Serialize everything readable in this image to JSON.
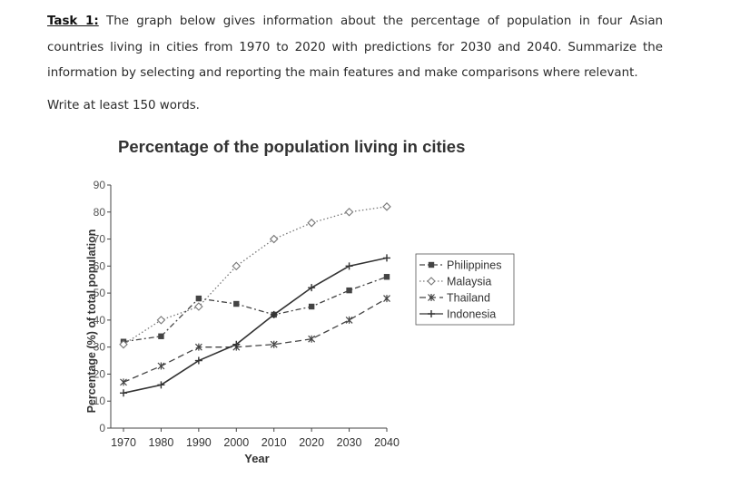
{
  "task": {
    "label": "Task 1:",
    "text": " The graph below gives information about the percentage of population in four Asian countries living in cities from 1970 to 2020 with predictions for 2030 and 2040. Summarize the information by selecting and reporting the main features and make comparisons where relevant."
  },
  "instruction": "Write at least 150 words.",
  "chart_data": {
    "type": "line",
    "title": "Percentage of the population living in cities",
    "xlabel": "Year",
    "ylabel": "Percentage (%) of total population",
    "x": [
      1970,
      1980,
      1990,
      2000,
      2010,
      2020,
      2030,
      2040
    ],
    "ylim": [
      0,
      90
    ],
    "yticks": [
      0,
      10,
      20,
      30,
      40,
      50,
      60,
      70,
      80,
      90
    ],
    "grid": false,
    "legend_position": "right",
    "series": [
      {
        "name": "Philippines",
        "marker": "square",
        "dash": "dashdot",
        "color": "#444444",
        "values": [
          32,
          34,
          48,
          46,
          42,
          45,
          51,
          56
        ]
      },
      {
        "name": "Malaysia",
        "marker": "circle-open",
        "dash": "dotted",
        "color": "#777777",
        "values": [
          31,
          40,
          45,
          60,
          70,
          76,
          80,
          82
        ]
      },
      {
        "name": "Thailand",
        "marker": "star",
        "dash": "dashed",
        "color": "#444444",
        "values": [
          17,
          23,
          30,
          30,
          31,
          33,
          40,
          48
        ]
      },
      {
        "name": "Indonesia",
        "marker": "plus",
        "dash": "solid",
        "color": "#333333",
        "values": [
          13,
          16,
          25,
          31,
          42,
          52,
          60,
          63
        ]
      }
    ]
  }
}
